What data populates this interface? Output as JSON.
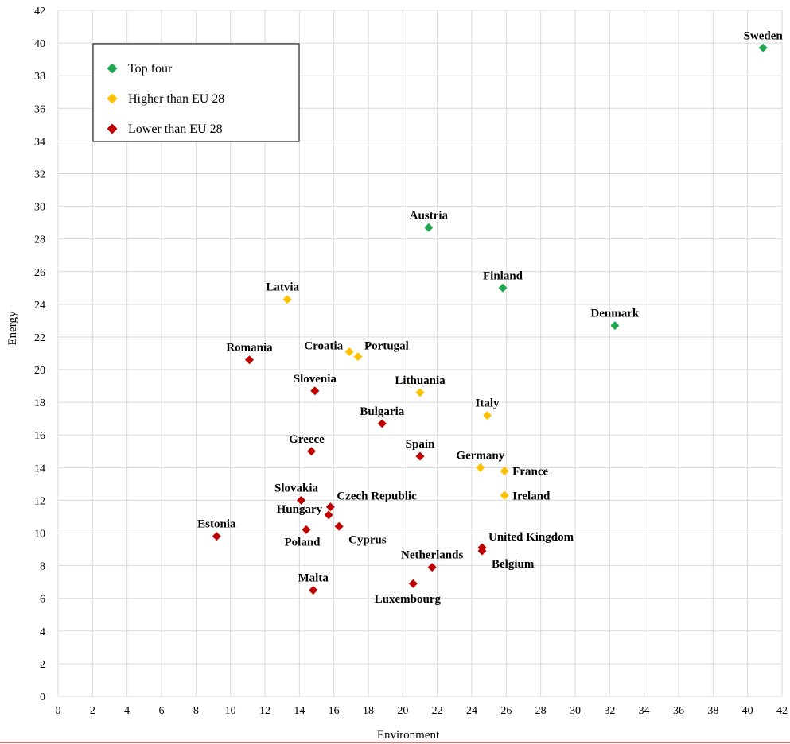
{
  "colors": {
    "top_four": "#1fa84f",
    "higher": "#ffc000",
    "lower": "#c00000",
    "grid": "#d9d9d9",
    "footer_line": "#c0504d"
  },
  "chart_data": {
    "type": "scatter",
    "xlabel": "Environment",
    "ylabel": "Energy",
    "xlim": [
      0,
      42
    ],
    "ylim": [
      0,
      42
    ],
    "x_ticks": [
      0,
      2,
      4,
      6,
      8,
      10,
      12,
      14,
      16,
      18,
      20,
      22,
      24,
      26,
      28,
      30,
      32,
      34,
      36,
      38,
      40,
      42
    ],
    "y_ticks": [
      0,
      2,
      4,
      6,
      8,
      10,
      12,
      14,
      16,
      18,
      20,
      22,
      24,
      26,
      28,
      30,
      32,
      34,
      36,
      38,
      40,
      42
    ],
    "grid": true,
    "legend_position": "top-left",
    "series": [
      {
        "name": "Top four",
        "color": "#1fa84f",
        "points": [
          {
            "label": "Sweden",
            "x": 40.9,
            "y": 39.7,
            "label_pos": "above"
          },
          {
            "label": "Austria",
            "x": 21.5,
            "y": 28.7,
            "label_pos": "above"
          },
          {
            "label": "Finland",
            "x": 25.8,
            "y": 25.0,
            "label_pos": "above"
          },
          {
            "label": "Denmark",
            "x": 32.3,
            "y": 22.7,
            "label_pos": "above"
          }
        ]
      },
      {
        "name": "Higher than EU 28",
        "color": "#ffc000",
        "points": [
          {
            "label": "Latvia",
            "x": 13.3,
            "y": 24.3,
            "label_pos": "above-left"
          },
          {
            "label": "Croatia",
            "x": 16.9,
            "y": 21.1,
            "label_pos": "left"
          },
          {
            "label": "Portugal",
            "x": 17.4,
            "y": 20.8,
            "label_pos": "above-right"
          },
          {
            "label": "Lithuania",
            "x": 21.0,
            "y": 18.6,
            "label_pos": "above"
          },
          {
            "label": "Italy",
            "x": 24.9,
            "y": 17.2,
            "label_pos": "above"
          },
          {
            "label": "Germany",
            "x": 24.5,
            "y": 14.0,
            "label_pos": "above"
          },
          {
            "label": "France",
            "x": 25.9,
            "y": 13.8,
            "label_pos": "right"
          },
          {
            "label": "Ireland",
            "x": 25.9,
            "y": 12.3,
            "label_pos": "right"
          }
        ]
      },
      {
        "name": "Lower than EU 28",
        "color": "#c00000",
        "points": [
          {
            "label": "Romania",
            "x": 11.1,
            "y": 20.6,
            "label_pos": "above"
          },
          {
            "label": "Slovenia",
            "x": 14.9,
            "y": 18.7,
            "label_pos": "above"
          },
          {
            "label": "Bulgaria",
            "x": 18.8,
            "y": 16.7,
            "label_pos": "above"
          },
          {
            "label": "Greece",
            "x": 14.7,
            "y": 15.0,
            "label_pos": "above-left"
          },
          {
            "label": "Spain",
            "x": 21.0,
            "y": 14.7,
            "label_pos": "above"
          },
          {
            "label": "Slovakia",
            "x": 14.1,
            "y": 12.0,
            "label_pos": "above-left"
          },
          {
            "label": "Czech Republic",
            "x": 15.8,
            "y": 11.6,
            "label_pos": "above-right"
          },
          {
            "label": "Hungary",
            "x": 15.7,
            "y": 11.1,
            "label_pos": "left"
          },
          {
            "label": "Estonia",
            "x": 9.2,
            "y": 9.8,
            "label_pos": "above"
          },
          {
            "label": "Poland",
            "x": 14.4,
            "y": 10.2,
            "label_pos": "below-left"
          },
          {
            "label": "Cyprus",
            "x": 16.3,
            "y": 10.4,
            "label_pos": "below-right"
          },
          {
            "label": "United Kingdom",
            "x": 24.6,
            "y": 9.1,
            "label_pos": "above-right"
          },
          {
            "label": "Belgium",
            "x": 24.6,
            "y": 8.9,
            "label_pos": "below-right"
          },
          {
            "label": "Netherlands",
            "x": 21.7,
            "y": 7.9,
            "label_pos": "above"
          },
          {
            "label": "Luxembourg",
            "x": 20.6,
            "y": 6.9,
            "label_pos": "below"
          },
          {
            "label": "Malta",
            "x": 14.8,
            "y": 6.5,
            "label_pos": "above"
          }
        ]
      }
    ]
  }
}
